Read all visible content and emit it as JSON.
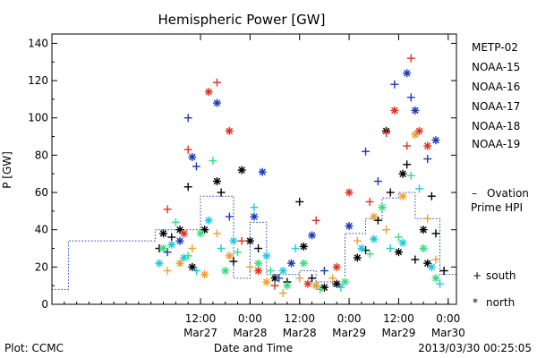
{
  "chart_data": {
    "type": "scatter",
    "title": "Hemispheric Power [GW]",
    "ylabel": "P [GW]",
    "xlabel": "Date and Time",
    "ylim": [
      0,
      145
    ],
    "xlim": [
      "2013-03-26 00:00",
      "2013-03-30 02:00"
    ],
    "yticks": [
      "0",
      "20",
      "40",
      "60",
      "80",
      "100",
      "120",
      "140"
    ],
    "xticks": [
      {
        "time": "12:00",
        "date": "Mar27",
        "at": "2013-03-27 12:00"
      },
      {
        "time": "0:00",
        "date": "Mar28",
        "at": "2013-03-28 00:00"
      },
      {
        "time": "12:00",
        "date": "Mar28",
        "at": "2013-03-28 12:00"
      },
      {
        "time": "0:00",
        "date": "Mar29",
        "at": "2013-03-29 00:00"
      },
      {
        "time": "12:00",
        "date": "Mar29",
        "at": "2013-03-29 12:00"
      },
      {
        "time": "0:00",
        "date": "Mar30",
        "at": "2013-03-30 00:00"
      }
    ],
    "series": [
      {
        "name": "METP-02",
        "color": "#000000",
        "points": [
          {
            "t": "2013-03-27 02:00",
            "v": 30,
            "m": "+"
          },
          {
            "t": "2013-03-27 03:00",
            "v": 38,
            "m": "*"
          },
          {
            "t": "2013-03-27 05:00",
            "v": 36,
            "m": "+"
          },
          {
            "t": "2013-03-27 07:00",
            "v": 40,
            "m": "*"
          },
          {
            "t": "2013-03-27 09:00",
            "v": 63,
            "m": "+"
          },
          {
            "t": "2013-03-27 10:00",
            "v": 20,
            "m": "*"
          },
          {
            "t": "2013-03-27 13:00",
            "v": 40,
            "m": "*"
          },
          {
            "t": "2013-03-27 16:00",
            "v": 66,
            "m": "*"
          },
          {
            "t": "2013-03-27 17:00",
            "v": 60,
            "m": "+"
          },
          {
            "t": "2013-03-27 20:00",
            "v": 23,
            "m": "+"
          },
          {
            "t": "2013-03-27 22:00",
            "v": 72,
            "m": "*"
          },
          {
            "t": "2013-03-28 00:00",
            "v": 34,
            "m": "*"
          },
          {
            "t": "2013-03-28 02:00",
            "v": 30,
            "m": "+"
          },
          {
            "t": "2013-03-28 06:00",
            "v": 14,
            "m": "*"
          },
          {
            "t": "2013-03-28 09:00",
            "v": 12,
            "m": "+"
          },
          {
            "t": "2013-03-28 12:00",
            "v": 55,
            "m": "+"
          },
          {
            "t": "2013-03-28 13:00",
            "v": 31,
            "m": "*"
          },
          {
            "t": "2013-03-28 15:00",
            "v": 14,
            "m": "+"
          },
          {
            "t": "2013-03-28 18:00",
            "v": 9,
            "m": "*"
          },
          {
            "t": "2013-03-28 21:00",
            "v": 11,
            "m": "*"
          },
          {
            "t": "2013-03-29 02:00",
            "v": 25,
            "m": "*"
          },
          {
            "t": "2013-03-29 04:00",
            "v": 29,
            "m": "+"
          },
          {
            "t": "2013-03-29 07:00",
            "v": 45,
            "m": "+"
          },
          {
            "t": "2013-03-29 09:00",
            "v": 93,
            "m": "*"
          },
          {
            "t": "2013-03-29 10:00",
            "v": 60,
            "m": "+"
          },
          {
            "t": "2013-03-29 12:00",
            "v": 28,
            "m": "*"
          },
          {
            "t": "2013-03-29 13:00",
            "v": 70,
            "m": "*"
          },
          {
            "t": "2013-03-29 14:00",
            "v": 75,
            "m": "+"
          },
          {
            "t": "2013-03-29 16:00",
            "v": 24,
            "m": "+"
          },
          {
            "t": "2013-03-29 18:00",
            "v": 40,
            "m": "*"
          },
          {
            "t": "2013-03-29 19:00",
            "v": 22,
            "m": "*"
          },
          {
            "t": "2013-03-29 20:00",
            "v": 58,
            "m": "+"
          },
          {
            "t": "2013-03-29 21:00",
            "v": 38,
            "m": "+"
          },
          {
            "t": "2013-03-29 23:00",
            "v": 18,
            "m": "+"
          }
        ]
      },
      {
        "name": "NOAA-15",
        "color": "#1c39bb",
        "points": [
          {
            "t": "2013-03-27 04:00",
            "v": 28,
            "m": "+"
          },
          {
            "t": "2013-03-27 07:00",
            "v": 34,
            "m": "*"
          },
          {
            "t": "2013-03-27 09:00",
            "v": 100,
            "m": "+"
          },
          {
            "t": "2013-03-27 10:00",
            "v": 79,
            "m": "*"
          },
          {
            "t": "2013-03-27 11:00",
            "v": 74,
            "m": "+"
          },
          {
            "t": "2013-03-27 16:00",
            "v": 108,
            "m": "*"
          },
          {
            "t": "2013-03-27 19:00",
            "v": 47,
            "m": "+"
          },
          {
            "t": "2013-03-28 01:00",
            "v": 47,
            "m": "*"
          },
          {
            "t": "2013-03-28 03:00",
            "v": 71,
            "m": "*"
          },
          {
            "t": "2013-03-28 07:00",
            "v": 14,
            "m": "+"
          },
          {
            "t": "2013-03-28 10:00",
            "v": 22,
            "m": "*"
          },
          {
            "t": "2013-03-28 15:00",
            "v": 37,
            "m": "*"
          },
          {
            "t": "2013-03-28 18:00",
            "v": 18,
            "m": "+"
          },
          {
            "t": "2013-03-29 00:00",
            "v": 42,
            "m": "*"
          },
          {
            "t": "2013-03-29 04:00",
            "v": 82,
            "m": "+"
          },
          {
            "t": "2013-03-29 07:00",
            "v": 66,
            "m": "+"
          },
          {
            "t": "2013-03-29 11:00",
            "v": 118,
            "m": "+"
          },
          {
            "t": "2013-03-29 14:00",
            "v": 124,
            "m": "*"
          },
          {
            "t": "2013-03-29 15:00",
            "v": 111,
            "m": "+"
          },
          {
            "t": "2013-03-29 16:00",
            "v": 104,
            "m": "*"
          },
          {
            "t": "2013-03-29 19:00",
            "v": 78,
            "m": "+"
          },
          {
            "t": "2013-03-29 21:00",
            "v": 88,
            "m": "*"
          }
        ]
      },
      {
        "name": "NOAA-16",
        "color": "#1ec8e0",
        "points": [
          {
            "t": "2013-03-27 02:00",
            "v": 22,
            "m": "*"
          },
          {
            "t": "2013-03-27 05:00",
            "v": 32,
            "m": "*"
          },
          {
            "t": "2013-03-27 08:00",
            "v": 25,
            "m": "*"
          },
          {
            "t": "2013-03-27 11:00",
            "v": 18,
            "m": "+"
          },
          {
            "t": "2013-03-27 14:00",
            "v": 45,
            "m": "*"
          },
          {
            "t": "2013-03-27 17:00",
            "v": 30,
            "m": "+"
          },
          {
            "t": "2013-03-27 20:00",
            "v": 34,
            "m": "*"
          },
          {
            "t": "2013-03-28 01:00",
            "v": 52,
            "m": "+"
          },
          {
            "t": "2013-03-28 04:00",
            "v": 26,
            "m": "*"
          },
          {
            "t": "2013-03-28 08:00",
            "v": 18,
            "m": "*"
          },
          {
            "t": "2013-03-28 11:00",
            "v": 30,
            "m": "+"
          },
          {
            "t": "2013-03-28 16:00",
            "v": 10,
            "m": "*"
          },
          {
            "t": "2013-03-28 22:00",
            "v": 9,
            "m": "+"
          },
          {
            "t": "2013-03-29 03:00",
            "v": 30,
            "m": "*"
          },
          {
            "t": "2013-03-29 06:00",
            "v": 35,
            "m": "*"
          },
          {
            "t": "2013-03-29 10:00",
            "v": 30,
            "m": "+"
          },
          {
            "t": "2013-03-29 13:00",
            "v": 33,
            "m": "*"
          },
          {
            "t": "2013-03-29 17:00",
            "v": 62,
            "m": "+"
          },
          {
            "t": "2013-03-29 20:00",
            "v": 20,
            "m": "*"
          },
          {
            "t": "2013-03-29 22:00",
            "v": 11,
            "m": "+"
          }
        ]
      },
      {
        "name": "NOAA-17",
        "color": "#33e07a",
        "points": [
          {
            "t": "2013-03-27 03:00",
            "v": 30,
            "m": "*"
          },
          {
            "t": "2013-03-27 06:00",
            "v": 44,
            "m": "+"
          },
          {
            "t": "2013-03-27 09:00",
            "v": 26,
            "m": "+"
          },
          {
            "t": "2013-03-27 12:00",
            "v": 38,
            "m": "*"
          },
          {
            "t": "2013-03-27 15:00",
            "v": 77,
            "m": "+"
          },
          {
            "t": "2013-03-27 18:00",
            "v": 18,
            "m": "*"
          },
          {
            "t": "2013-03-27 21:00",
            "v": 28,
            "m": "+"
          },
          {
            "t": "2013-03-28 02:00",
            "v": 22,
            "m": "*"
          },
          {
            "t": "2013-03-28 05:00",
            "v": 18,
            "m": "+"
          },
          {
            "t": "2013-03-28 09:00",
            "v": 10,
            "m": "*"
          },
          {
            "t": "2013-03-28 13:00",
            "v": 22,
            "m": "*"
          },
          {
            "t": "2013-03-28 17:00",
            "v": 8,
            "m": "+"
          },
          {
            "t": "2013-03-28 23:00",
            "v": 12,
            "m": "*"
          },
          {
            "t": "2013-03-29 05:00",
            "v": 27,
            "m": "+"
          },
          {
            "t": "2013-03-29 08:00",
            "v": 52,
            "m": "*"
          },
          {
            "t": "2013-03-29 12:00",
            "v": 36,
            "m": "+"
          },
          {
            "t": "2013-03-29 15:00",
            "v": 69,
            "m": "+"
          },
          {
            "t": "2013-03-29 18:00",
            "v": 30,
            "m": "*"
          },
          {
            "t": "2013-03-29 21:00",
            "v": 14,
            "m": "*"
          }
        ]
      },
      {
        "name": "NOAA-18",
        "color": "#f0a030",
        "points": [
          {
            "t": "2013-03-27 04:00",
            "v": 18,
            "m": "+"
          },
          {
            "t": "2013-03-27 07:00",
            "v": 22,
            "m": "*"
          },
          {
            "t": "2013-03-27 10:00",
            "v": 30,
            "m": "+"
          },
          {
            "t": "2013-03-27 13:00",
            "v": 16,
            "m": "*"
          },
          {
            "t": "2013-03-27 16:00",
            "v": 38,
            "m": "+"
          },
          {
            "t": "2013-03-27 19:00",
            "v": 26,
            "m": "*"
          },
          {
            "t": "2013-03-28 00:00",
            "v": 20,
            "m": "+"
          },
          {
            "t": "2013-03-28 04:00",
            "v": 12,
            "m": "*"
          },
          {
            "t": "2013-03-28 08:00",
            "v": 6,
            "m": "+"
          },
          {
            "t": "2013-03-28 12:00",
            "v": 14,
            "m": "+"
          },
          {
            "t": "2013-03-28 16:00",
            "v": 10,
            "m": "*"
          },
          {
            "t": "2013-03-28 20:00",
            "v": 14,
            "m": "+"
          },
          {
            "t": "2013-03-29 02:00",
            "v": 34,
            "m": "+"
          },
          {
            "t": "2013-03-29 06:00",
            "v": 47,
            "m": "*"
          },
          {
            "t": "2013-03-29 09:00",
            "v": 40,
            "m": "+"
          },
          {
            "t": "2013-03-29 13:00",
            "v": 58,
            "m": "*"
          },
          {
            "t": "2013-03-29 16:00",
            "v": 91,
            "m": "*"
          },
          {
            "t": "2013-03-29 19:00",
            "v": 46,
            "m": "+"
          },
          {
            "t": "2013-03-29 21:00",
            "v": 24,
            "m": "+"
          }
        ]
      },
      {
        "name": "NOAA-19",
        "color": "#e03020",
        "points": [
          {
            "t": "2013-03-27 04:00",
            "v": 51,
            "m": "+"
          },
          {
            "t": "2013-03-27 08:00",
            "v": 38,
            "m": "*"
          },
          {
            "t": "2013-03-27 09:00",
            "v": 83,
            "m": "+"
          },
          {
            "t": "2013-03-27 14:00",
            "v": 114,
            "m": "*"
          },
          {
            "t": "2013-03-27 16:00",
            "v": 119,
            "m": "+"
          },
          {
            "t": "2013-03-27 19:00",
            "v": 93,
            "m": "*"
          },
          {
            "t": "2013-03-27 22:00",
            "v": 34,
            "m": "+"
          },
          {
            "t": "2013-03-28 02:00",
            "v": 18,
            "m": "*"
          },
          {
            "t": "2013-03-28 06:00",
            "v": 10,
            "m": "+"
          },
          {
            "t": "2013-03-28 14:00",
            "v": 11,
            "m": "*"
          },
          {
            "t": "2013-03-28 16:00",
            "v": 45,
            "m": "+"
          },
          {
            "t": "2013-03-28 21:00",
            "v": 20,
            "m": "*"
          },
          {
            "t": "2013-03-29 00:00",
            "v": 60,
            "m": "*"
          },
          {
            "t": "2013-03-29 05:00",
            "v": 55,
            "m": "+"
          },
          {
            "t": "2013-03-29 09:00",
            "v": 92,
            "m": "+"
          },
          {
            "t": "2013-03-29 11:00",
            "v": 104,
            "m": "*"
          },
          {
            "t": "2013-03-29 14:00",
            "v": 85,
            "m": "+"
          },
          {
            "t": "2013-03-29 15:00",
            "v": 132,
            "m": "+"
          },
          {
            "t": "2013-03-29 17:00",
            "v": 93,
            "m": "*"
          },
          {
            "t": "2013-03-29 19:00",
            "v": 85,
            "m": "*"
          }
        ]
      }
    ],
    "ovation": {
      "label_line1": "Ovation",
      "label_line2": "Prime HPI",
      "color": "#1c39bb",
      "steps": [
        {
          "t": "2013-03-26 00:00",
          "v": 8
        },
        {
          "t": "2013-03-26 04:00",
          "v": 34
        },
        {
          "t": "2013-03-27 01:00",
          "v": 40
        },
        {
          "t": "2013-03-27 12:00",
          "v": 58
        },
        {
          "t": "2013-03-27 20:00",
          "v": 14
        },
        {
          "t": "2013-03-28 00:00",
          "v": 44
        },
        {
          "t": "2013-03-28 04:00",
          "v": 16
        },
        {
          "t": "2013-03-28 12:00",
          "v": 18
        },
        {
          "t": "2013-03-28 16:00",
          "v": 12
        },
        {
          "t": "2013-03-28 20:00",
          "v": 10
        },
        {
          "t": "2013-03-28 23:00",
          "v": 38
        },
        {
          "t": "2013-03-29 04:00",
          "v": 46
        },
        {
          "t": "2013-03-29 08:00",
          "v": 57
        },
        {
          "t": "2013-03-29 12:00",
          "v": 60
        },
        {
          "t": "2013-03-29 16:00",
          "v": 46
        },
        {
          "t": "2013-03-29 22:00",
          "v": 16
        }
      ]
    },
    "marker_legend": [
      {
        "symbol": "+",
        "label": "south"
      },
      {
        "symbol": "*",
        "label": "north"
      }
    ]
  },
  "footer": {
    "left": "Plot: CCMC",
    "right": "2013/03/30 00:25:05"
  }
}
